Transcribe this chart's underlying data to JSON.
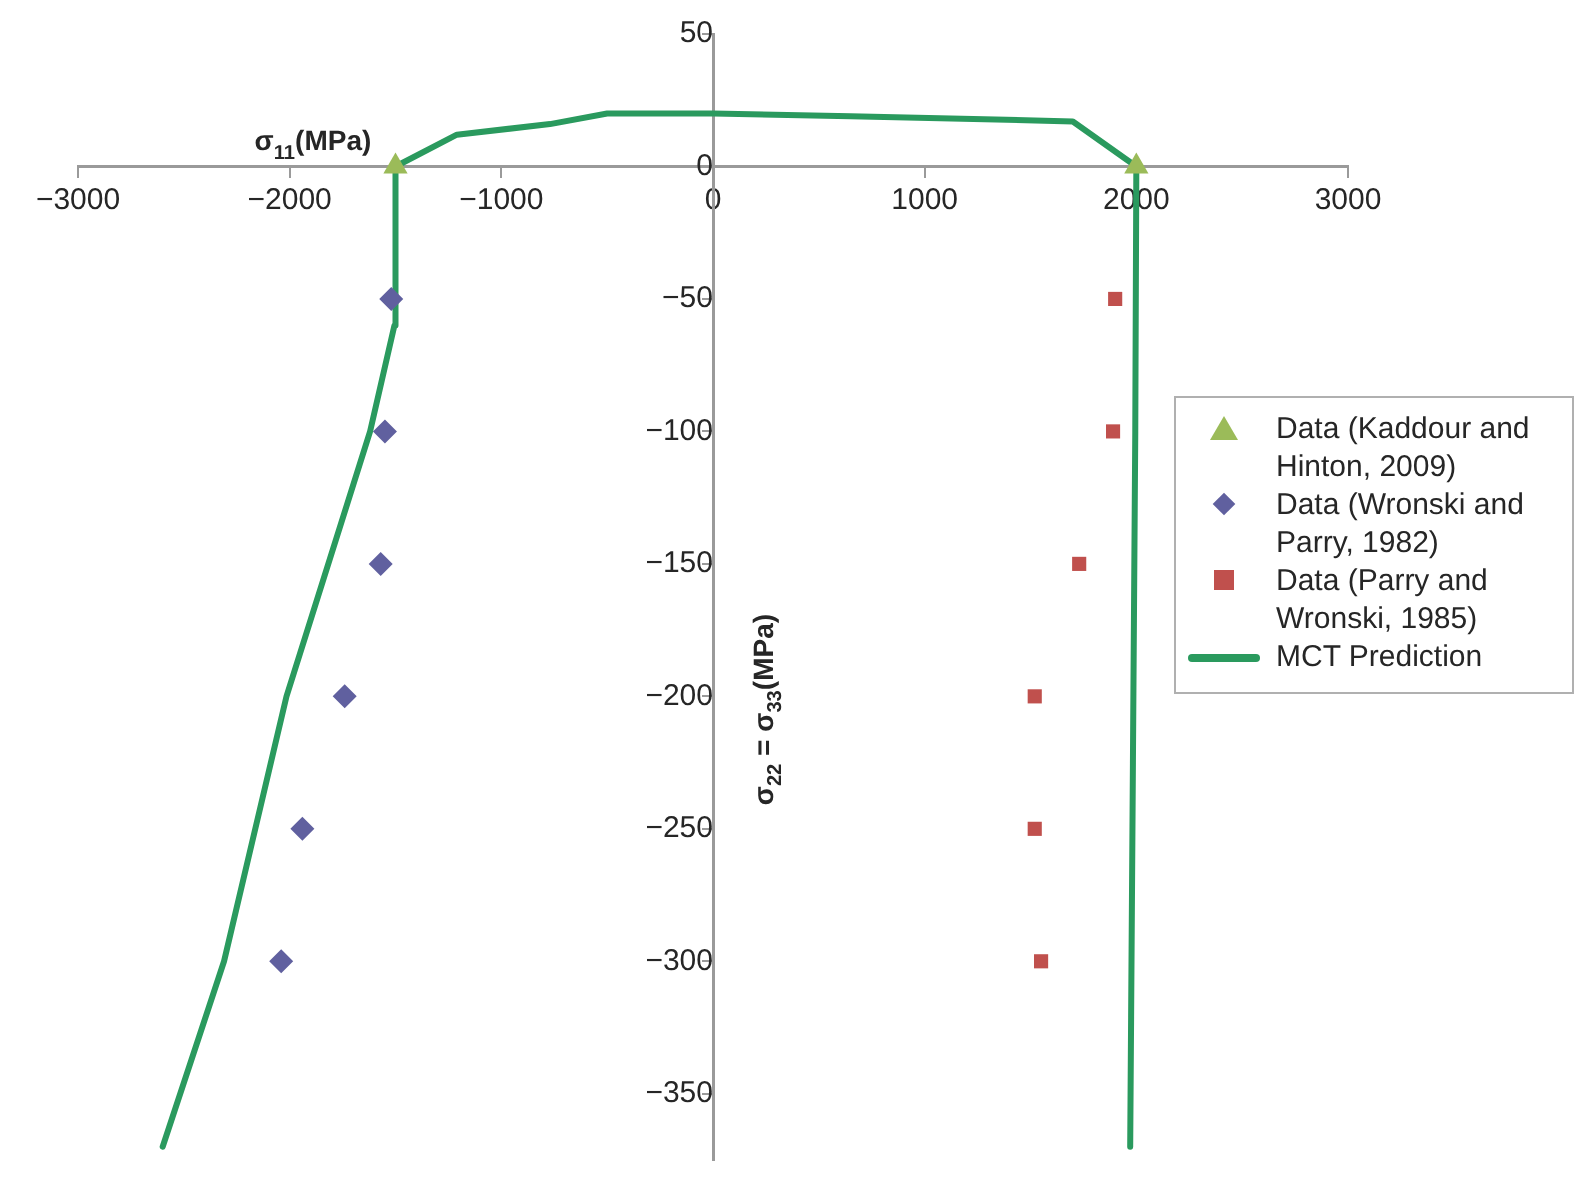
{
  "chart_data": {
    "type": "scatter",
    "xlabel": "σ$_{11}$(MPa)",
    "ylabel": "σ$_{22}$ = σ$_{33}$(MPa)",
    "xlim": [
      -3000,
      3000
    ],
    "ylim": [
      -375,
      50
    ],
    "xticks": [
      -3000,
      -2000,
      -1000,
      0,
      1000,
      2000,
      3000
    ],
    "yticks": [
      -350,
      -300,
      -250,
      -200,
      -150,
      -100,
      -50,
      0,
      50
    ],
    "grid": false,
    "legend": "right",
    "series": [
      {
        "name": "Data (Kaddour and Hinton, 2009)",
        "type": "scatter",
        "marker": "triangle",
        "color": "#9bbb59",
        "x": [
          -1500,
          2000
        ],
        "values": [
          0,
          0
        ]
      },
      {
        "name": "Data (Wronski and Parry, 1982)",
        "type": "scatter",
        "marker": "diamond",
        "color": "#60609f",
        "x": [
          -1520,
          -1550,
          -1570,
          -1740,
          -1940,
          -2040
        ],
        "values": [
          -50,
          -100,
          -150,
          -200,
          -250,
          -300
        ]
      },
      {
        "name": "Data (Parry and Wronski, 1985)",
        "type": "scatter",
        "marker": "square",
        "color": "#c0504d",
        "x": [
          1900,
          1890,
          1730,
          1520,
          1520,
          1550
        ],
        "values": [
          -50,
          -100,
          -150,
          -200,
          -250,
          -300
        ]
      },
      {
        "name": "MCT Prediction",
        "type": "line",
        "marker": "none",
        "color": "#2a9a5e",
        "x": [
          -2600,
          -2310,
          -2015,
          -1620,
          -1505,
          -1500,
          -1210,
          -770,
          -500,
          0,
          650,
          1700,
          2000,
          1995,
          1971
        ],
        "values": [
          -370,
          -300,
          -200,
          -100,
          -60,
          0,
          12,
          16,
          20,
          20,
          19,
          17,
          0,
          -100,
          -370
        ]
      }
    ]
  }
}
